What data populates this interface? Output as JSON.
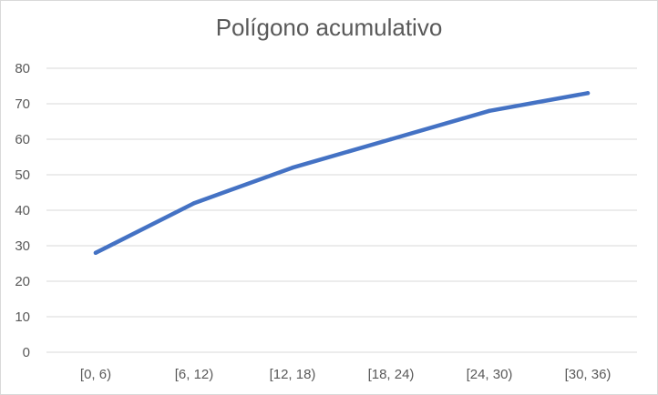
{
  "chart_data": {
    "type": "line",
    "title": "Polígono acumulativo",
    "xlabel": "",
    "ylabel": "",
    "categories": [
      "[0, 6)",
      "[6, 12)",
      "[12, 18)",
      "[18, 24)",
      "[24, 30)",
      "[30, 36)"
    ],
    "series": [
      {
        "values": [
          28,
          42,
          52,
          60,
          68,
          73
        ]
      }
    ],
    "ylim": [
      0,
      80
    ],
    "yticks": [
      0,
      10,
      20,
      30,
      40,
      50,
      60,
      70,
      80
    ],
    "grid": "horizontal",
    "legend": "none",
    "colors": {
      "line": "#4472c4",
      "grid": "#d9d9d9",
      "text": "#595959"
    }
  }
}
